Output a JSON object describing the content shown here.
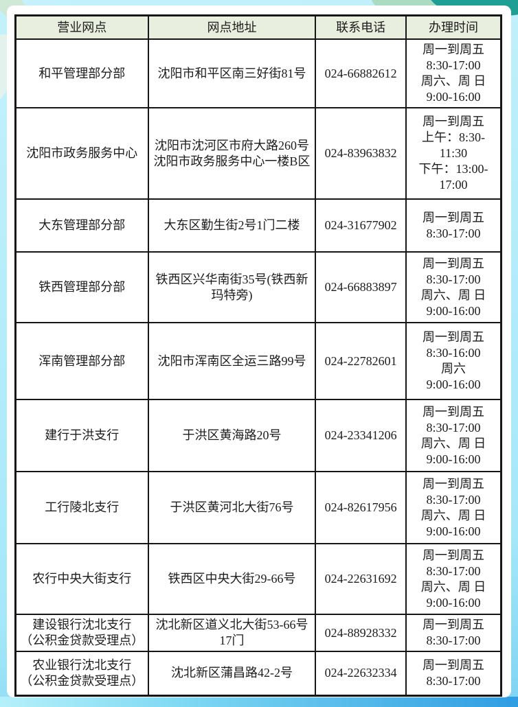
{
  "colors": {
    "header_bg": "#e9efdf",
    "border": "#161616",
    "page_bg": "#b3ecfa",
    "bottom_gradient_start": "#b5f0fa",
    "bottom_gradient_end": "#2f9de2",
    "leaf_dark_teal": "#1d9f93",
    "leaf_mint": "#abdcc2",
    "leaf_pale_green": "#cfe9d6",
    "leaf_faint": "#e2f3ee"
  },
  "header": {
    "columns": [
      "营业网点",
      "网点地址",
      "联系电话",
      "办理时间"
    ]
  },
  "rows": [
    {
      "name": "和平管理部分部",
      "address": "沈阳市和平区南三好街81号",
      "phone": "024-66882612",
      "hours": "周一到周五\n8:30-17:00\n周六、周 日\n9:00-16:00"
    },
    {
      "name": "沈阳市政务服务中心",
      "address": "沈阳市沈河区市府大路260号沈阳市政务服务中心一楼B区",
      "phone": "024-83963832",
      "hours": "周一到周五\n上午：8:30-\n11:30\n下午：13:00-\n17:00"
    },
    {
      "name": "大东管理部分部",
      "address": "大东区勤生街2号1门二楼",
      "phone": "024-31677902",
      "hours": "周一到周五\n8:30-17:00"
    },
    {
      "name": "铁西管理部分部",
      "address": "铁西区兴华南街35号(铁西新玛特旁)",
      "phone": "024-66883897",
      "hours": "周一到周五\n8:30-17:00\n周六、周 日\n9:00-16:00"
    },
    {
      "name": "浑南管理部分部",
      "address": "沈阳市浑南区全运三路99号",
      "phone": "024-22782601",
      "hours": "周一到周五\n8:30-16:00\n周六\n9:00-16:00"
    },
    {
      "name": "建行于洪支行",
      "address": "于洪区黄海路20号",
      "phone": "024-23341206",
      "hours": "周一到周五\n8:30-17:00\n周六、周 日\n9:00-16:00"
    },
    {
      "name": "工行陵北支行",
      "address": "于洪区黄河北大街76号",
      "phone": "024-82617956",
      "hours": "周一到周五\n8:30-17:00\n周六、周 日\n9:00-16:00"
    },
    {
      "name": "农行中央大街支行",
      "address": "铁西区中央大街29-66号",
      "phone": "024-22631692",
      "hours": "周一到周五\n8:30-17:00\n周六、周 日\n9:00-16:00"
    },
    {
      "name": "建设银行沈北支行\n（公积金贷款受理点）",
      "address": "沈北新区道义北大街53-66号17门",
      "phone": "024-88928332",
      "hours": "周一到周五\n8:30-17:00"
    },
    {
      "name": "农业银行沈北支行\n（公积金贷款受理点）",
      "address": "沈北新区蒲昌路42-2号",
      "phone": "024-22632334",
      "hours": "周一到周五\n8:30-17:00"
    }
  ]
}
